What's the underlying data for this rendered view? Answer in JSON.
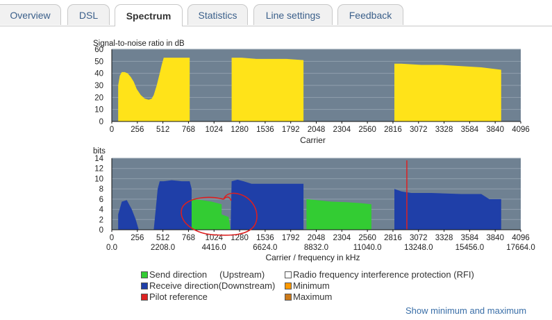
{
  "tabs": [
    {
      "label": "Overview",
      "active": false
    },
    {
      "label": "DSL",
      "active": false
    },
    {
      "label": "Spectrum",
      "active": true
    },
    {
      "label": "Statistics",
      "active": false
    },
    {
      "label": "Line settings",
      "active": false
    },
    {
      "label": "Feedback",
      "active": false
    }
  ],
  "colors": {
    "plot_bg": "#6f8192",
    "snr_fill": "#ffe319",
    "upstream": "#33cc33",
    "downstream": "#1f3fa8",
    "pilot": "#dd2222",
    "minimum": "#ff9900",
    "maximum": "#cc7a1a",
    "annotation": "#dd1f1f"
  },
  "chart_data": [
    {
      "type": "area",
      "ylabel": "Signal-to-noise ratio in dB",
      "xlabel": "Carrier",
      "ylim": [
        0,
        60
      ],
      "xlim": [
        0,
        4096
      ],
      "yticks": [
        "0",
        "10",
        "20",
        "30",
        "40",
        "50",
        "60"
      ],
      "xticks": [
        "0",
        "256",
        "512",
        "768",
        "1024",
        "1280",
        "1536",
        "1792",
        "2048",
        "2304",
        "2560",
        "2816",
        "3072",
        "3328",
        "3584",
        "3840",
        "4096"
      ],
      "series": [
        {
          "values": [
            [
              64,
              0
            ],
            [
              64,
              30
            ],
            [
              80,
              38
            ],
            [
              100,
              41
            ],
            [
              130,
              41
            ],
            [
              160,
              40
            ],
            [
              190,
              37
            ],
            [
              220,
              33
            ],
            [
              250,
              27
            ],
            [
              290,
              22
            ],
            [
              330,
              19
            ],
            [
              370,
              18
            ],
            [
              400,
              19
            ],
            [
              420,
              22
            ],
            [
              450,
              30
            ],
            [
              480,
              40
            ],
            [
              500,
              47
            ],
            [
              520,
              53
            ],
            [
              560,
              53
            ],
            [
              640,
              53
            ],
            [
              700,
              53
            ],
            [
              780,
              53
            ],
            [
              780,
              0
            ]
          ]
        },
        {
          "values": [
            [
              1200,
              0
            ],
            [
              1200,
              53
            ],
            [
              1300,
              53
            ],
            [
              1450,
              52
            ],
            [
              1600,
              52
            ],
            [
              1750,
              52
            ],
            [
              1920,
              51
            ],
            [
              1920,
              0
            ]
          ]
        },
        {
          "values": [
            [
              2830,
              0
            ],
            [
              2830,
              48
            ],
            [
              2900,
              48
            ],
            [
              3100,
              47
            ],
            [
              3300,
              47
            ],
            [
              3500,
              46
            ],
            [
              3700,
              45
            ],
            [
              3800,
              44
            ],
            [
              3900,
              43
            ],
            [
              3900,
              0
            ]
          ]
        }
      ]
    },
    {
      "type": "area",
      "ylabel": "bits",
      "xlabel": "Carrier / frequency in kHz",
      "ylim": [
        0,
        14
      ],
      "xlim": [
        0,
        4096
      ],
      "yticks": [
        "0",
        "2",
        "4",
        "6",
        "8",
        "10",
        "12",
        "14"
      ],
      "xticks": [
        "0",
        "256",
        "512",
        "768",
        "1024",
        "1280",
        "1536",
        "1792",
        "2048",
        "2304",
        "2560",
        "2816",
        "3072",
        "3328",
        "3584",
        "3840",
        "4096"
      ],
      "xticks2": [
        "0.0",
        "2208.0",
        "4416.0",
        "6624.0",
        "8832.0",
        "11040.0",
        "13248.0",
        "15456.0",
        "17664.0"
      ],
      "series": [
        {
          "name": "Send direction     (Upstream)",
          "color_key": "upstream",
          "values": [
            [
              800,
              0
            ],
            [
              800,
              6
            ],
            [
              900,
              5.8
            ],
            [
              1000,
              5.5
            ],
            [
              1100,
              5
            ],
            [
              1100,
              3
            ],
            [
              1170,
              2.5
            ],
            [
              1190,
              0
            ]
          ]
        },
        {
          "name": "Send direction     (Upstream)",
          "color_key": "upstream",
          "values": [
            [
              1950,
              0
            ],
            [
              1950,
              6
            ],
            [
              2050,
              5.8
            ],
            [
              2200,
              5.5
            ],
            [
              2350,
              5.4
            ],
            [
              2500,
              5.2
            ],
            [
              2600,
              5
            ],
            [
              2600,
              0
            ]
          ]
        },
        {
          "name": "Receive direction(Downstream)",
          "color_key": "downstream",
          "values": [
            [
              64,
              0
            ],
            [
              64,
              3
            ],
            [
              100,
              5.5
            ],
            [
              150,
              5.8
            ],
            [
              200,
              4
            ],
            [
              240,
              2
            ],
            [
              270,
              0
            ]
          ]
        },
        {
          "name": "Receive direction(Downstream)",
          "color_key": "downstream",
          "values": [
            [
              420,
              0
            ],
            [
              440,
              4
            ],
            [
              460,
              8
            ],
            [
              480,
              9.5
            ],
            [
              520,
              9.5
            ],
            [
              600,
              9.7
            ],
            [
              700,
              9.5
            ],
            [
              780,
              9.5
            ],
            [
              800,
              8
            ],
            [
              800,
              0
            ]
          ]
        },
        {
          "name": "Receive direction(Downstream)",
          "color_key": "downstream",
          "values": [
            [
              1190,
              0
            ],
            [
              1200,
              9.5
            ],
            [
              1260,
              9.8
            ],
            [
              1320,
              9.5
            ],
            [
              1400,
              9
            ],
            [
              1550,
              9
            ],
            [
              1700,
              9
            ],
            [
              1920,
              9
            ],
            [
              1920,
              0
            ]
          ]
        },
        {
          "name": "Receive direction(Downstream)",
          "color_key": "downstream",
          "values": [
            [
              2830,
              0
            ],
            [
              2830,
              8
            ],
            [
              2900,
              7.5
            ],
            [
              3000,
              7.2
            ],
            [
              3200,
              7.2
            ],
            [
              3500,
              7
            ],
            [
              3700,
              7
            ],
            [
              3780,
              6
            ],
            [
              3900,
              6
            ],
            [
              3900,
              0
            ]
          ]
        }
      ],
      "pilot_carrier": 2955
    }
  ],
  "legend": [
    {
      "label": "Send direction     (Upstream)",
      "color_key": "upstream"
    },
    {
      "label": "Radio frequency interference protection (RFI)",
      "color_key": "white"
    },
    {
      "label": "Receive direction(Downstream)",
      "color_key": "downstream"
    },
    {
      "label": "Minimum",
      "color_key": "minimum"
    },
    {
      "label": "Pilot reference",
      "color_key": "pilot"
    },
    {
      "label": "Maximum",
      "color_key": "maximum"
    }
  ],
  "show_link": "Show minimum and maximum"
}
